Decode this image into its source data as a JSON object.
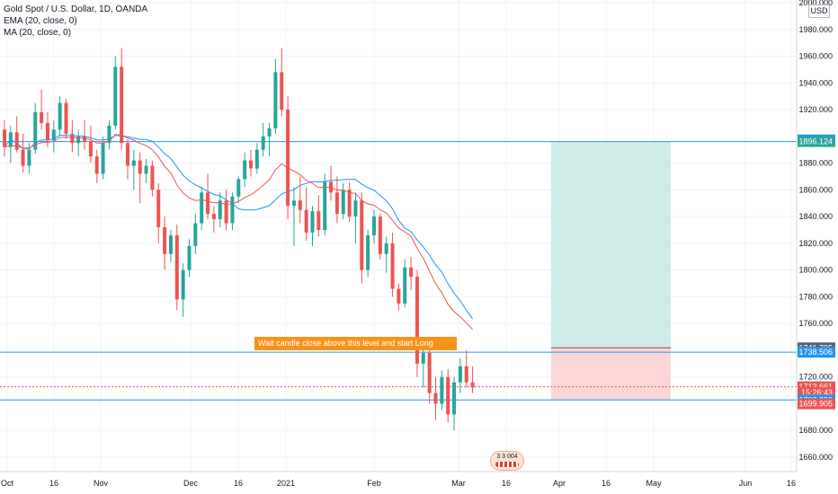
{
  "legend": {
    "symbol": "Gold Spot / U.S. Dollar, 1D, OANDA",
    "ema": "EMA (20, close, 0)",
    "ma": "MA (20, close, 0)"
  },
  "usd_label": "USD",
  "annotation": "Wait candle close above this level and start Long",
  "earnings_badge": "3 3 004",
  "colors": {
    "up": "#26a69a",
    "down": "#ef5350",
    "ema": "#ef5350",
    "ma": "#2196f3",
    "hline": "#2196f3",
    "target_zone": "#cdece8",
    "stop_zone": "#fbd7d7",
    "callout": "#f7931a"
  },
  "chart_data": {
    "type": "candlestick",
    "ylim": [
      1640,
      2000
    ],
    "yticks": [
      "2000.000",
      "1980.000",
      "1960.000",
      "1940.000",
      "1920.000",
      "1880.000",
      "1860.000",
      "1840.000",
      "1820.000",
      "1800.000",
      "1780.000",
      "1760.000",
      "1720.000",
      "1680.000",
      "1660.000"
    ],
    "xticks": [
      "Oct",
      "16",
      "Nov",
      "Dec",
      "16",
      "2021",
      "Feb",
      "Mar",
      "16",
      "Apr",
      "16",
      "May",
      "Jun",
      "16"
    ],
    "ohlc": [
      [
        1905,
        1912,
        1885,
        1892
      ],
      [
        1892,
        1908,
        1880,
        1903
      ],
      [
        1903,
        1915,
        1888,
        1890
      ],
      [
        1890,
        1902,
        1873,
        1878
      ],
      [
        1878,
        1895,
        1872,
        1890
      ],
      [
        1890,
        1925,
        1887,
        1918
      ],
      [
        1918,
        1935,
        1905,
        1910
      ],
      [
        1910,
        1918,
        1892,
        1897
      ],
      [
        1897,
        1912,
        1888,
        1905
      ],
      [
        1905,
        1930,
        1900,
        1925
      ],
      [
        1925,
        1928,
        1898,
        1902
      ],
      [
        1902,
        1912,
        1888,
        1895
      ],
      [
        1895,
        1905,
        1885,
        1900
      ],
      [
        1900,
        1912,
        1890,
        1896
      ],
      [
        1896,
        1908,
        1880,
        1885
      ],
      [
        1885,
        1890,
        1865,
        1872
      ],
      [
        1872,
        1900,
        1868,
        1895
      ],
      [
        1895,
        1912,
        1890,
        1908
      ],
      [
        1908,
        1960,
        1905,
        1952
      ],
      [
        1952,
        1966,
        1890,
        1895
      ],
      [
        1895,
        1898,
        1868,
        1878
      ],
      [
        1878,
        1890,
        1860,
        1882
      ],
      [
        1882,
        1888,
        1850,
        1872
      ],
      [
        1872,
        1883,
        1865,
        1878
      ],
      [
        1878,
        1882,
        1855,
        1860
      ],
      [
        1860,
        1865,
        1820,
        1832
      ],
      [
        1832,
        1840,
        1800,
        1812
      ],
      [
        1812,
        1830,
        1806,
        1826
      ],
      [
        1826,
        1834,
        1770,
        1778
      ],
      [
        1778,
        1805,
        1765,
        1800
      ],
      [
        1800,
        1823,
        1795,
        1818
      ],
      [
        1818,
        1842,
        1812,
        1835
      ],
      [
        1835,
        1862,
        1830,
        1858
      ],
      [
        1858,
        1872,
        1838,
        1842
      ],
      [
        1842,
        1848,
        1828,
        1838
      ],
      [
        1838,
        1858,
        1832,
        1852
      ],
      [
        1852,
        1860,
        1830,
        1835
      ],
      [
        1835,
        1858,
        1830,
        1855
      ],
      [
        1855,
        1870,
        1850,
        1868
      ],
      [
        1868,
        1888,
        1862,
        1882
      ],
      [
        1882,
        1890,
        1870,
        1876
      ],
      [
        1876,
        1895,
        1872,
        1890
      ],
      [
        1890,
        1910,
        1885,
        1900
      ],
      [
        1900,
        1910,
        1885,
        1906
      ],
      [
        1906,
        1958,
        1902,
        1948
      ],
      [
        1948,
        1966,
        1915,
        1920
      ],
      [
        1920,
        1930,
        1838,
        1848
      ],
      [
        1848,
        1862,
        1818,
        1852
      ],
      [
        1852,
        1870,
        1835,
        1845
      ],
      [
        1845,
        1862,
        1822,
        1828
      ],
      [
        1828,
        1848,
        1818,
        1844
      ],
      [
        1844,
        1856,
        1825,
        1830
      ],
      [
        1830,
        1872,
        1826,
        1866
      ],
      [
        1866,
        1878,
        1852,
        1858
      ],
      [
        1858,
        1870,
        1835,
        1842
      ],
      [
        1842,
        1865,
        1838,
        1860
      ],
      [
        1860,
        1866,
        1836,
        1840
      ],
      [
        1840,
        1858,
        1820,
        1852
      ],
      [
        1852,
        1858,
        1790,
        1800
      ],
      [
        1800,
        1830,
        1795,
        1826
      ],
      [
        1826,
        1845,
        1820,
        1840
      ],
      [
        1840,
        1842,
        1808,
        1812
      ],
      [
        1812,
        1825,
        1798,
        1820
      ],
      [
        1820,
        1828,
        1780,
        1786
      ],
      [
        1786,
        1790,
        1770,
        1775
      ],
      [
        1775,
        1808,
        1772,
        1802
      ],
      [
        1802,
        1810,
        1785,
        1795
      ],
      [
        1795,
        1800,
        1720,
        1730
      ],
      [
        1730,
        1745,
        1712,
        1738
      ],
      [
        1738,
        1742,
        1700,
        1708
      ],
      [
        1708,
        1720,
        1688,
        1700
      ],
      [
        1700,
        1725,
        1695,
        1720
      ],
      [
        1720,
        1726,
        1686,
        1692
      ],
      [
        1692,
        1720,
        1680,
        1716
      ],
      [
        1716,
        1734,
        1708,
        1728
      ],
      [
        1728,
        1740,
        1712,
        1716
      ],
      [
        1716,
        1728,
        1708,
        1712
      ]
    ],
    "ema_label": "EMA (20, close, 0)",
    "ma_label": "MA (20, close, 0)",
    "levels": [
      1896.124,
      1738.506,
      1702.83
    ],
    "position": {
      "entry": 1741.795,
      "target": 1896.124,
      "stop": 1702.83
    },
    "price_labels": [
      {
        "value": "1897.349",
        "price": 1897.349,
        "bg": "#2196f3"
      },
      {
        "value": "1896.124",
        "price": 1896.124,
        "bg": "#26a69a"
      },
      {
        "value": "1741.795",
        "price": 1741.795,
        "bg": "#5d606b"
      },
      {
        "value": "1738.506",
        "price": 1738.506,
        "bg": "#2196f3"
      },
      {
        "value": "1712.661",
        "price": 1712.661,
        "bg": "#ef5350"
      },
      {
        "value": "15:26:43",
        "price": 1708.4,
        "bg": "#ef5350"
      },
      {
        "value": "1702.830",
        "price": 1702.83,
        "bg": "#2196f3"
      },
      {
        "value": "1699.905",
        "price": 1699.905,
        "bg": "#ef5350"
      }
    ],
    "current_price": 1712.661
  }
}
